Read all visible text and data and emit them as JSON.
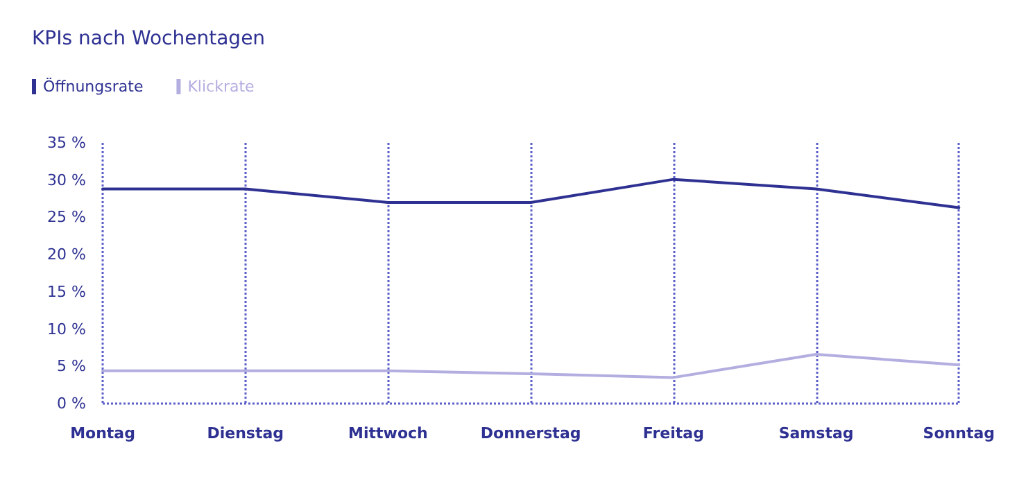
{
  "chart_data": {
    "type": "line",
    "title": "KPIs nach Wochentagen",
    "categories": [
      "Montag",
      "Dienstag",
      "Mittwoch",
      "Donnerstag",
      "Freitag",
      "Samstag",
      "Sonntag"
    ],
    "series": [
      {
        "name": "Öffnungsrate",
        "color": "#2e3192",
        "values": [
          28.8,
          28.8,
          27.0,
          27.0,
          30.1,
          28.8,
          26.3
        ]
      },
      {
        "name": "Klickrate",
        "color": "#b3aee0",
        "values": [
          4.4,
          4.4,
          4.4,
          4.0,
          3.5,
          6.6,
          5.2
        ]
      }
    ],
    "ylim": [
      0,
      35
    ],
    "yticks": [
      {
        "value": 0,
        "label": "0 %"
      },
      {
        "value": 5,
        "label": "5 %"
      },
      {
        "value": 10,
        "label": "10 %"
      },
      {
        "value": 15,
        "label": "15 %"
      },
      {
        "value": 20,
        "label": "20 %"
      },
      {
        "value": 25,
        "label": "25 %"
      },
      {
        "value": 30,
        "label": "30 %"
      },
      {
        "value": 35,
        "label": "35 %"
      }
    ],
    "grid": "x",
    "legend": "top left",
    "marker": "none",
    "line_style": "solid"
  }
}
